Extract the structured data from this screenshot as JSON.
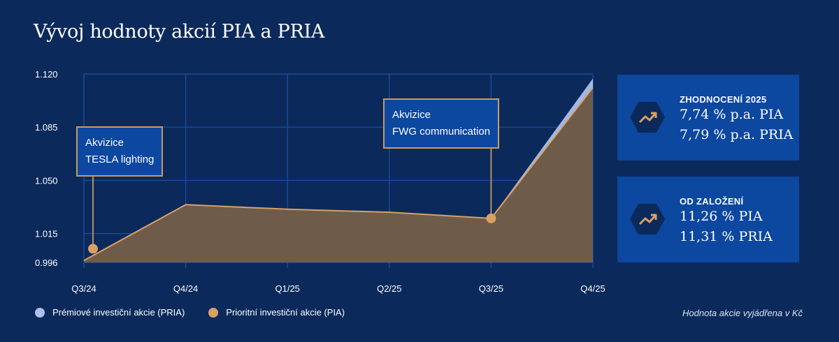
{
  "title": "Vývoj hodnoty akcií PIA a PRIA",
  "note": "Hodnota akcie vyjádřena v Kč",
  "colors": {
    "background": "#0b2a5b",
    "panel": "#0c47a0",
    "grid": "#1d4fa8",
    "pia": "#d9a066",
    "pria": "#a9c1ee",
    "area": "#6e5b4a"
  },
  "chart_data": {
    "type": "area",
    "title": "Vývoj hodnoty akcií PIA a PRIA",
    "xlabel": "",
    "ylabel": "",
    "categories": [
      "Q3/24",
      "Q4/24",
      "Q1/25",
      "Q2/25",
      "Q3/25",
      "Q4/25"
    ],
    "y_ticks": [
      "1.120",
      "1.085",
      "1.050",
      "1.015",
      "0.996"
    ],
    "ylim": [
      996,
      1120
    ],
    "grid": true,
    "series": [
      {
        "name": "Prémiové investiční akcie (PRIA)",
        "values": [
          1000,
          1034,
          1031,
          1029,
          1025,
          1117
        ],
        "color": "#a9c1ee"
      },
      {
        "name": "Prioritní investiční akcie (PIA)",
        "values": [
          1000,
          1034,
          1031,
          1029,
          1025,
          1111
        ],
        "color": "#d9a066"
      }
    ],
    "annotations": [
      {
        "category": "Q3/24",
        "value": 1005,
        "lines": [
          "Akvizice",
          "TESLA lighting"
        ]
      },
      {
        "category": "Q3/25",
        "value": 1025,
        "lines": [
          "Akvizice",
          "FWG communication"
        ]
      }
    ]
  },
  "panels": [
    {
      "label": "ZHODNOCENÍ 2025",
      "line1": "7,74 % p.a. PIA",
      "line2": "7,79 % p.a. PRIA",
      "icon": "trend-up-icon"
    },
    {
      "label": "OD ZALOŽENÍ",
      "line1": "11,26 % PIA",
      "line2": "11,31 % PRIA",
      "icon": "trend-up-icon"
    }
  ],
  "legend": [
    {
      "label": "Prémiové investiční akcie (PRIA)",
      "color": "#a9c1ee"
    },
    {
      "label": "Prioritní investiční akcie (PIA)",
      "color": "#d9a066"
    }
  ]
}
